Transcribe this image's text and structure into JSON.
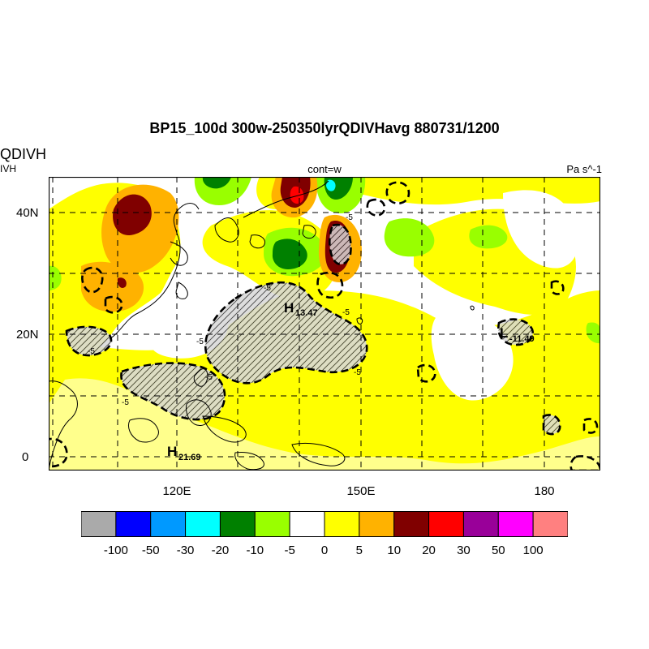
{
  "title": "BP15_100d 300w-250350lyrQDIVHavg  880731/1200",
  "left_title": "QDIVH",
  "left_subtitle": "IVH",
  "center_string": "cont=w",
  "units": "Pa s^-1",
  "axes": {
    "lat_labels": [
      "40N",
      "20N",
      "0"
    ],
    "lon_labels": [
      "120E",
      "150E",
      "180"
    ]
  },
  "annotations": [
    {
      "letter": "H",
      "value": "13.47"
    },
    {
      "letter": "L",
      "value": "-11.49"
    },
    {
      "letter": "H",
      "value": "21.69"
    }
  ],
  "contour_labels": [
    "-5",
    "-5",
    "-5",
    "-5",
    "-5",
    "-5",
    "-5",
    "-5"
  ],
  "colorbar": {
    "colors": [
      "#aaaaaa",
      "#0000ff",
      "#0099ff",
      "#00ffff",
      "#008000",
      "#99ff00",
      "#ffffff",
      "#ffff00",
      "#ffb200",
      "#800000",
      "#ff0000",
      "#990099",
      "#ff00ff",
      "#ff8080"
    ],
    "labels": [
      "-100",
      "-50",
      "-30",
      "-20",
      "-10",
      "-5",
      "0",
      "5",
      "10",
      "20",
      "30",
      "50",
      "100"
    ]
  }
}
